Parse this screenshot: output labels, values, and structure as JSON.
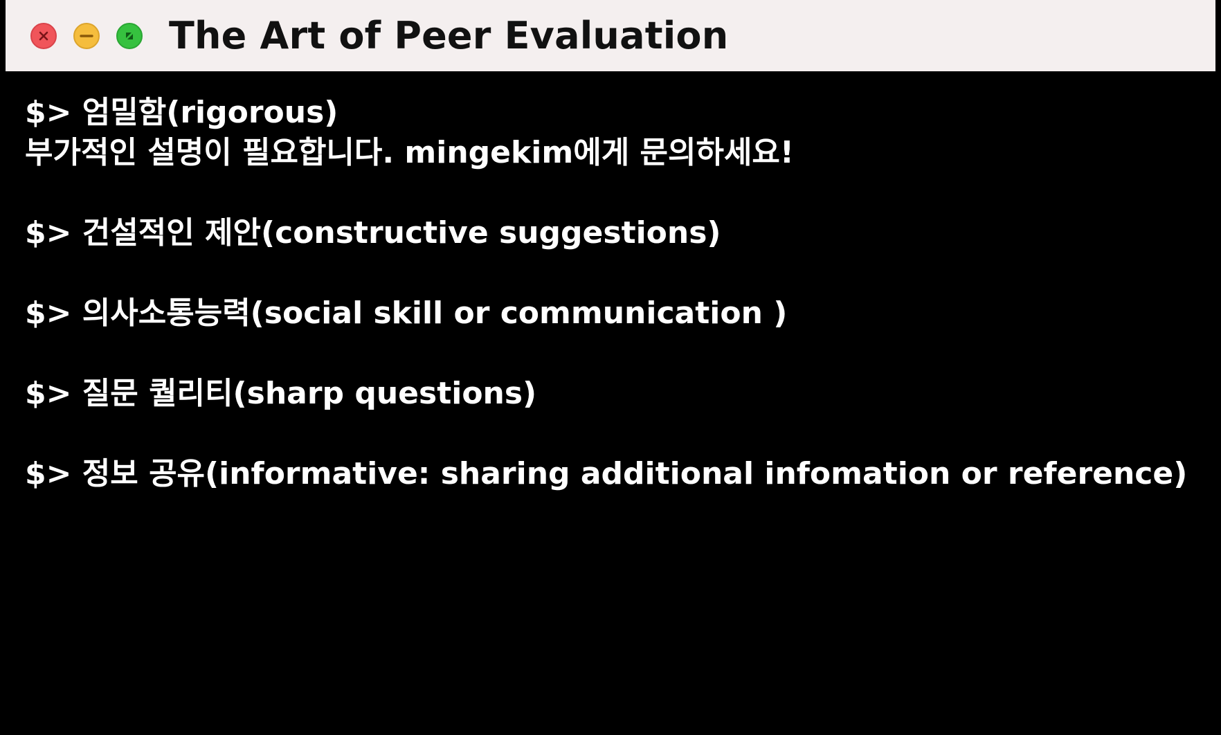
{
  "window": {
    "title": "The Art of Peer Evaluation",
    "controls": {
      "close": "close-icon",
      "minimize": "minimize-icon",
      "zoom": "zoom-icon"
    },
    "colors": {
      "titlebar_bg": "#f4efef",
      "close": "#f0555a",
      "minimize": "#f5bd3d",
      "zoom": "#36c13f",
      "terminal_bg": "#000000",
      "terminal_text": "#ffffff"
    }
  },
  "terminal": {
    "entries": [
      {
        "command": "$> 엄밀함(rigorous)",
        "note": "부가적인 설명이 필요합니다. mingekim에게 문의하세요!"
      },
      {
        "command": "$> 건설적인 제안(constructive suggestions)"
      },
      {
        "command": "$> 의사소통능력(social skill or communication )"
      },
      {
        "command": "$> 질문 퀄리티(sharp questions)"
      },
      {
        "command": "$> 정보 공유(informative: sharing additional infomation or reference)"
      }
    ]
  }
}
